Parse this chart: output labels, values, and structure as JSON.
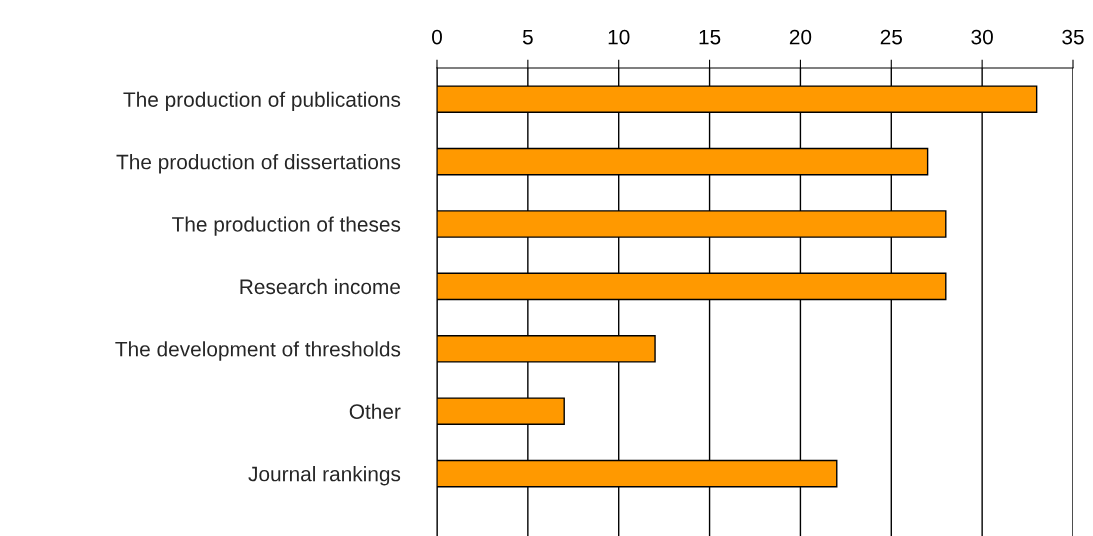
{
  "chart_data": {
    "type": "bar",
    "orientation": "horizontal",
    "categories": [
      "The production of publications",
      "The production of dissertations",
      "The production of theses",
      "Research income",
      "The development of thresholds",
      "Other",
      "Journal rankings"
    ],
    "values": [
      33,
      27,
      28,
      28,
      12,
      7,
      22
    ],
    "color": "#ff9900",
    "xlim": [
      0,
      35
    ],
    "xticks": [
      0,
      5,
      10,
      15,
      20,
      25,
      30,
      35
    ],
    "grid": "x",
    "legend": false
  }
}
